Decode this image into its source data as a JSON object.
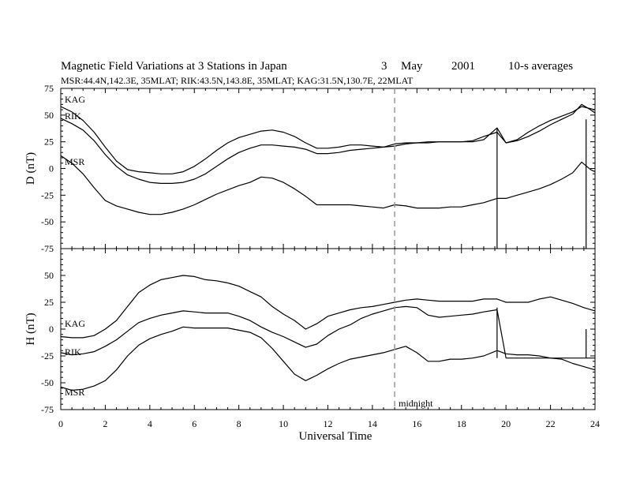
{
  "chart_data": {
    "type": "line",
    "title": "Magnetic Field Variations at 3 Stations in Japan",
    "date": [
      "3",
      "May",
      "2001"
    ],
    "averaging": "10-s averages",
    "subtitle": "MSR:44.4N,142.3E, 35MLAT;  RIK:43.5N,143.8E, 35MLAT;  KAG:31.5N,130.7E, 22MLAT",
    "xlabel": "Universal Time",
    "xlim": [
      0,
      24
    ],
    "xticks": [
      "0",
      "2",
      "4",
      "6",
      "8",
      "10",
      "12",
      "14",
      "16",
      "18",
      "20",
      "22",
      "24"
    ],
    "annotation": {
      "text": "midnight",
      "x": 15
    },
    "panels": [
      {
        "ylabel": "D (nT)",
        "ylim": [
          -75,
          75
        ],
        "yticks": [
          "75",
          "50",
          "25",
          "0",
          "-25",
          "-50",
          "-75"
        ],
        "series": [
          {
            "name": "KAG",
            "x": [
              0,
              0.5,
              1,
              1.5,
              2,
              2.5,
              3,
              3.5,
              4,
              4.5,
              5,
              5.5,
              6,
              6.5,
              7,
              7.5,
              8,
              8.5,
              9,
              9.5,
              10,
              10.5,
              11,
              11.5,
              12,
              12.5,
              13,
              13.5,
              14,
              14.5,
              15,
              15.5,
              16,
              16.5,
              17,
              17.5,
              18,
              18.5,
              19,
              19.6,
              20,
              20.5,
              21,
              21.5,
              22,
              22.5,
              23,
              23.4,
              23.8,
              24
            ],
            "y": [
              58,
              53,
              45,
              34,
              20,
              7,
              -1,
              -3,
              -4,
              -5,
              -5,
              -3,
              2,
              9,
              17,
              24,
              29,
              32,
              35,
              36,
              34,
              30,
              24,
              19,
              19,
              20,
              22,
              22,
              21,
              20,
              23,
              24,
              24,
              25,
              25,
              25,
              25,
              26,
              30,
              34,
              24,
              27,
              34,
              40,
              45,
              49,
              53,
              58,
              56,
              55
            ]
          },
          {
            "name": "RIK",
            "x": [
              0,
              0.5,
              1,
              1.5,
              2,
              2.5,
              3,
              3.5,
              4,
              4.5,
              5,
              5.5,
              6,
              6.5,
              7,
              7.5,
              8,
              8.5,
              9,
              9.5,
              10,
              10.5,
              11,
              11.5,
              12,
              12.5,
              13,
              13.5,
              14,
              14.5,
              15,
              15.5,
              16,
              16.5,
              17,
              17.5,
              18,
              18.5,
              19,
              19.6,
              20,
              20.5,
              21,
              21.5,
              22,
              22.5,
              23,
              23.4,
              23.8,
              24
            ],
            "y": [
              47,
              42,
              36,
              26,
              13,
              2,
              -6,
              -10,
              -13,
              -14,
              -14,
              -13,
              -10,
              -5,
              2,
              9,
              15,
              19,
              22,
              22,
              21,
              20,
              18,
              14,
              14,
              15,
              17,
              18,
              19,
              20,
              21,
              23,
              24,
              24,
              25,
              25,
              25,
              25,
              27,
              38,
              24,
              26,
              30,
              35,
              41,
              46,
              51,
              60,
              55,
              52
            ]
          },
          {
            "name": "MSR",
            "x": [
              0,
              0.5,
              1,
              1.5,
              2,
              2.5,
              3,
              3.5,
              4,
              4.5,
              5,
              5.5,
              6,
              6.5,
              7,
              7.5,
              8,
              8.5,
              9,
              9.5,
              10,
              10.5,
              11,
              11.5,
              12,
              12.5,
              13,
              13.5,
              14,
              14.5,
              15,
              15.5,
              16,
              16.5,
              17,
              17.5,
              18,
              18.5,
              19,
              19.6,
              20,
              20.5,
              21,
              21.5,
              22,
              22.5,
              23,
              23.4,
              23.8,
              24
            ],
            "y": [
              12,
              5,
              -5,
              -18,
              -30,
              -35,
              -38,
              -41,
              -43,
              -43,
              -41,
              -38,
              -34,
              -29,
              -24,
              -20,
              -16,
              -13,
              -8,
              -9,
              -13,
              -19,
              -26,
              -34,
              -34,
              -34,
              -34,
              -35,
              -36,
              -37,
              -34,
              -35,
              -37,
              -37,
              -37,
              -36,
              -36,
              -34,
              -32,
              -28,
              -28,
              -25,
              -22,
              -19,
              -15,
              -10,
              -4,
              6,
              -1,
              -3
            ]
          }
        ],
        "steps": [
          {
            "x": 19.6,
            "from": 38,
            "to": -75
          },
          {
            "x": 23.6,
            "from": -75,
            "to": 46
          }
        ]
      },
      {
        "ylabel": "H (nT)",
        "ylim": [
          -75,
          75
        ],
        "yticks": [
          "50",
          "25",
          "0",
          "-25",
          "-50",
          "-75"
        ],
        "series": [
          {
            "name": "KAG",
            "x": [
              0,
              0.5,
              1,
              1.5,
              2,
              2.5,
              3,
              3.5,
              4,
              4.5,
              5,
              5.5,
              6,
              6.5,
              7,
              7.5,
              8,
              8.5,
              9,
              9.5,
              10,
              10.5,
              11,
              11.5,
              12,
              12.5,
              13,
              13.5,
              14,
              14.5,
              15,
              15.5,
              16,
              16.5,
              17,
              17.5,
              18,
              18.5,
              19,
              19.6,
              20,
              20.5,
              21,
              21.5,
              22,
              22.5,
              23,
              23.5,
              24
            ],
            "y": [
              -7,
              -8,
              -8,
              -6,
              0,
              8,
              21,
              34,
              41,
              46,
              48,
              50,
              49,
              46,
              45,
              43,
              40,
              35,
              30,
              21,
              14,
              8,
              0,
              5,
              12,
              15,
              18,
              20,
              21,
              23,
              25,
              27,
              28,
              27,
              26,
              26,
              26,
              26,
              28,
              28,
              25,
              25,
              25,
              28,
              30,
              27,
              24,
              20,
              17
            ]
          },
          {
            "name": "RIK",
            "x": [
              0,
              0.5,
              1,
              1.5,
              2,
              2.5,
              3,
              3.5,
              4,
              4.5,
              5,
              5.5,
              6,
              6.5,
              7,
              7.5,
              8,
              8.5,
              9,
              9.5,
              10,
              10.5,
              11,
              11.5,
              12,
              12.5,
              13,
              13.5,
              14,
              14.5,
              15,
              15.5,
              16,
              16.5,
              17,
              17.5,
              18,
              18.5,
              19,
              19.6,
              20,
              20.5,
              21,
              21.5,
              22,
              22.5,
              23,
              23.5,
              24
            ],
            "y": [
              -22,
              -24,
              -23,
              -21,
              -16,
              -10,
              -2,
              6,
              10,
              13,
              15,
              17,
              16,
              15,
              15,
              15,
              12,
              8,
              2,
              -3,
              -7,
              -12,
              -17,
              -14,
              -6,
              0,
              4,
              10,
              14,
              17,
              20,
              21,
              20,
              13,
              11,
              12,
              13,
              14,
              16,
              18,
              -27,
              -27,
              -27,
              -27,
              -27,
              -27,
              -27,
              -27,
              -27
            ]
          },
          {
            "name": "MSR",
            "x": [
              0,
              0.5,
              1,
              1.5,
              2,
              2.5,
              3,
              3.5,
              4,
              4.5,
              5,
              5.5,
              6,
              6.5,
              7,
              7.5,
              8,
              8.5,
              9,
              9.5,
              10,
              10.5,
              11,
              11.5,
              12,
              12.5,
              13,
              13.5,
              14,
              14.5,
              15,
              15.5,
              16,
              16.5,
              17,
              17.5,
              18,
              18.5,
              19,
              19.6,
              20,
              20.5,
              21,
              21.5,
              22,
              22.5,
              23,
              23.5,
              24
            ],
            "y": [
              -54,
              -57,
              -56,
              -53,
              -48,
              -38,
              -25,
              -15,
              -9,
              -5,
              -2,
              2,
              1,
              1,
              1,
              1,
              -1,
              -3,
              -8,
              -18,
              -30,
              -42,
              -48,
              -43,
              -37,
              -32,
              -28,
              -26,
              -24,
              -22,
              -19,
              -16,
              -22,
              -30,
              -30,
              -28,
              -28,
              -27,
              -25,
              -20,
              -23,
              -24,
              -24,
              -25,
              -27,
              -28,
              -32,
              -35,
              -38
            ]
          }
        ],
        "steps": [
          {
            "x": 19.6,
            "from": 20,
            "to": -27
          },
          {
            "x": 23.6,
            "from": -27,
            "to": 0
          }
        ]
      }
    ]
  }
}
